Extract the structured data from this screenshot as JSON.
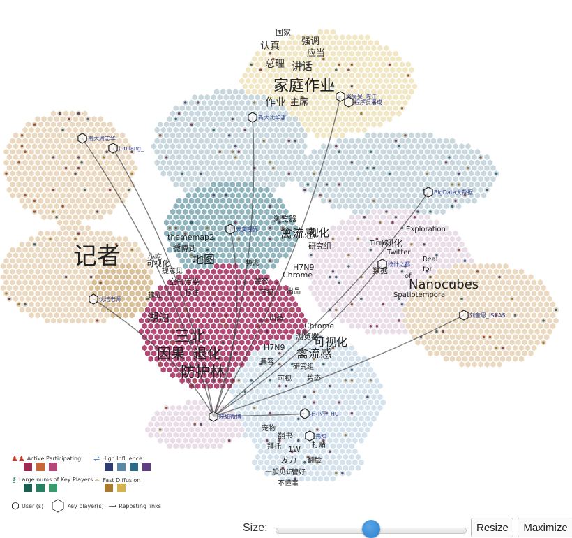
{
  "keywords": [
    {
      "text": "国家",
      "size": 11,
      "color": "#333"
    },
    {
      "text": "认真",
      "size": 14,
      "color": "#333"
    },
    {
      "text": "强调",
      "size": 13,
      "color": "#333"
    },
    {
      "text": "应当",
      "size": 13,
      "color": "#333"
    },
    {
      "text": "总理",
      "size": 14,
      "color": "#333"
    },
    {
      "text": "讲话",
      "size": 15,
      "color": "#333"
    },
    {
      "text": "家庭作业",
      "size": 22,
      "color": "#222"
    },
    {
      "text": "作业",
      "size": 15,
      "color": "#333"
    },
    {
      "text": "主席",
      "size": 13,
      "color": "#333"
    },
    {
      "text": "记者",
      "size": 34,
      "color": "#222"
    },
    {
      "text": "thememap2",
      "size": 11,
      "color": "#222"
    },
    {
      "text": "微博到",
      "size": 11,
      "color": "#222"
    },
    {
      "text": "地图",
      "size": 16,
      "color": "#222"
    },
    {
      "text": "小吃",
      "size": 10,
      "color": "#222"
    },
    {
      "text": "可视化",
      "size": 11,
      "color": "#222"
    },
    {
      "text": "提意见",
      "size": 10,
      "color": "#222"
    },
    {
      "text": "空气污染",
      "size": 11,
      "color": "#222"
    },
    {
      "text": "建立",
      "size": 10,
      "color": "#222"
    },
    {
      "text": "标注",
      "size": 10,
      "color": "#222"
    },
    {
      "text": "湖泊",
      "size": 16,
      "color": "#222"
    },
    {
      "text": "三北",
      "size": 22,
      "color": "#222"
    },
    {
      "text": "因果",
      "size": 20,
      "color": "#222"
    },
    {
      "text": "退化",
      "size": 20,
      "color": "#222"
    },
    {
      "text": "防护林",
      "size": 21,
      "color": "#222"
    },
    {
      "text": "浏览器",
      "size": 11,
      "color": "#222"
    },
    {
      "text": "禽流感",
      "size": 17,
      "color": "#222"
    },
    {
      "text": "视化",
      "size": 15,
      "color": "#222"
    },
    {
      "text": "研究组",
      "size": 11,
      "color": "#222"
    },
    {
      "text": "H7N9",
      "size": 11,
      "color": "#222"
    },
    {
      "text": "势态",
      "size": 10,
      "color": "#222"
    },
    {
      "text": "Chrome",
      "size": 11,
      "color": "#222"
    },
    {
      "text": "兼容",
      "size": 10,
      "color": "#222"
    },
    {
      "text": "可视",
      "size": 10,
      "color": "#222"
    },
    {
      "text": "出品",
      "size": 10,
      "color": "#222"
    },
    {
      "text": "出品",
      "size": 10,
      "color": "#222"
    },
    {
      "text": "Chrome",
      "size": 11,
      "color": "#222"
    },
    {
      "text": "浏览器",
      "size": 11,
      "color": "#222"
    },
    {
      "text": "禽流感",
      "size": 17,
      "color": "#222"
    },
    {
      "text": "可视化",
      "size": 16,
      "color": "#222"
    },
    {
      "text": "H7N9",
      "size": 11,
      "color": "#222"
    },
    {
      "text": "兼容",
      "size": 10,
      "color": "#222"
    },
    {
      "text": "研究组",
      "size": 10,
      "color": "#222"
    },
    {
      "text": "可视",
      "size": 10,
      "color": "#222"
    },
    {
      "text": "势态",
      "size": 10,
      "color": "#222"
    },
    {
      "text": "Exploration",
      "size": 10,
      "color": "#222"
    },
    {
      "text": "Time",
      "size": 10,
      "color": "#222"
    },
    {
      "text": "可视化",
      "size": 13,
      "color": "#222"
    },
    {
      "text": "Twitter",
      "size": 10,
      "color": "#222"
    },
    {
      "text": "数据",
      "size": 11,
      "color": "#222"
    },
    {
      "text": "Real",
      "size": 10,
      "color": "#222"
    },
    {
      "text": "for",
      "size": 10,
      "color": "#222"
    },
    {
      "text": "of",
      "size": 10,
      "color": "#222"
    },
    {
      "text": "Nanocubes",
      "size": 18,
      "color": "#222"
    },
    {
      "text": "Spatiotemporal",
      "size": 10,
      "color": "#222"
    },
    {
      "text": "宠物",
      "size": 10,
      "color": "#222"
    },
    {
      "text": "翻书",
      "size": 11,
      "color": "#222"
    },
    {
      "text": "打赌",
      "size": 10,
      "color": "#222"
    },
    {
      "text": "拜托",
      "size": 10,
      "color": "#222"
    },
    {
      "text": "1W",
      "size": 11,
      "color": "#222"
    },
    {
      "text": "发力",
      "size": 11,
      "color": "#222"
    },
    {
      "text": "翻脸",
      "size": 10,
      "color": "#222"
    },
    {
      "text": "一般见识",
      "size": 10,
      "color": "#222"
    },
    {
      "text": "管好",
      "size": 10,
      "color": "#222"
    },
    {
      "text": "不懂事",
      "size": 10,
      "color": "#222"
    }
  ],
  "users": [
    {
      "name": "南大周志华"
    },
    {
      "name": "Junliang_"
    },
    {
      "name": "新大沈华清"
    },
    {
      "name": "翁呆呆_陈江"
    },
    {
      "name": "程序员潘成"
    },
    {
      "name": "BigData大数据"
    },
    {
      "name": "云奕视界"
    },
    {
      "name": "统计之都"
    },
    {
      "name": "沈浩老师"
    },
    {
      "name": "刘奎恩_ISCAS"
    },
    {
      "name": "晓如微博"
    },
    {
      "name": "石小平THU"
    },
    {
      "name": "先知"
    }
  ],
  "colors": {
    "active": [
      "#9e2b4f",
      "#c4683a",
      "#b3457a"
    ],
    "high_influence": [
      "#2f3b72",
      "#5b87a6",
      "#2c6d88",
      "#5d3f80"
    ],
    "key_players": [
      "#1d5e52",
      "#2a7f63",
      "#3a9a6c"
    ],
    "fast_diffusion": [
      "#a87a2f",
      "#d4b24d"
    ],
    "regions": {
      "sand": "#ead9c0",
      "sand_dark": "#d9bf97",
      "cream": "#f1e7c5",
      "blue_grey": "#c8d8de",
      "teal": "#8fb4bd",
      "crimson": "#b14a75",
      "lilac": "#e9dde8",
      "pale_blue": "#d3e2ec"
    }
  },
  "legend": {
    "active_label": "Active Participating",
    "high_influence_label": "High Influence",
    "key_players_label": "Large nums of Key Players",
    "fast_diffusion_label": "Fast Diffusion",
    "user_label": "User (s)",
    "key_player_label": "Key player(s)",
    "reposting_label": "Reposting links"
  },
  "controls": {
    "size_label": "Size:",
    "slider_value": 0.5,
    "resize_label": "Resize",
    "maximize_label": "Maximize"
  }
}
